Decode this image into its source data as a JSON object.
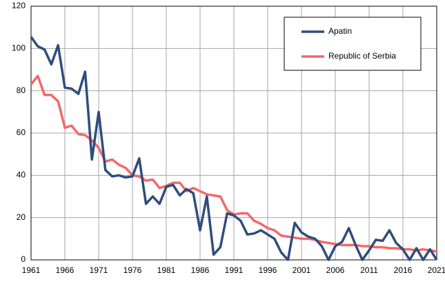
{
  "chart_data": {
    "type": "line",
    "x": [
      1961,
      1962,
      1963,
      1964,
      1965,
      1966,
      1967,
      1968,
      1969,
      1970,
      1971,
      1972,
      1973,
      1974,
      1975,
      1976,
      1977,
      1978,
      1979,
      1980,
      1981,
      1982,
      1983,
      1984,
      1985,
      1986,
      1987,
      1988,
      1989,
      1990,
      1991,
      1992,
      1993,
      1994,
      1995,
      1996,
      1997,
      1998,
      1999,
      2000,
      2001,
      2002,
      2003,
      2004,
      2005,
      2006,
      2007,
      2008,
      2009,
      2010,
      2011,
      2012,
      2013,
      2014,
      2015,
      2016,
      2017,
      2018,
      2019,
      2020,
      2021
    ],
    "series": [
      {
        "name": "Apatin",
        "color": "#2e4d7b",
        "values": [
          105.5,
          101,
          99.5,
          92.5,
          101.5,
          81.5,
          81,
          78.5,
          89,
          47.5,
          70,
          42.5,
          39.5,
          40,
          39,
          39.5,
          48,
          26.5,
          30,
          26.5,
          34.5,
          35.5,
          30.5,
          33.5,
          31.5,
          14,
          30,
          2.5,
          6,
          22,
          21,
          18.5,
          12,
          12.5,
          14,
          12,
          10,
          3.5,
          0,
          17.5,
          13,
          11,
          10,
          6.5,
          0,
          6.5,
          8.5,
          15,
          7,
          0,
          4.5,
          9.5,
          9,
          14,
          8,
          5,
          0,
          5.5,
          0,
          5,
          0
        ]
      },
      {
        "name": "Republic of Serbia",
        "color": "#f4686a",
        "values": [
          83,
          87,
          78,
          78,
          75,
          62.5,
          63.5,
          59.5,
          59,
          56.5,
          53,
          46.5,
          47.5,
          45,
          43.5,
          40,
          39.5,
          37.5,
          38,
          34,
          35,
          36.5,
          36.5,
          32.5,
          34,
          32.5,
          31,
          30.5,
          30,
          23.5,
          21.5,
          22,
          22,
          18.5,
          17,
          15,
          14,
          11.5,
          11,
          10.5,
          10,
          10,
          9.5,
          8.5,
          8,
          7.5,
          7,
          7,
          7,
          6.5,
          6.5,
          6,
          6,
          5.5,
          5.5,
          5,
          5,
          4.5,
          5,
          4.5,
          4
        ]
      }
    ],
    "xlim": [
      1961,
      2021
    ],
    "xticks": [
      1961,
      1966,
      1971,
      1976,
      1981,
      1986,
      1991,
      1996,
      2001,
      2006,
      2011,
      2016,
      2021
    ],
    "ylim": [
      0,
      120
    ],
    "yticks": [
      0,
      20,
      40,
      60,
      80,
      100,
      120
    ],
    "grid": true,
    "legend": "top-right"
  }
}
